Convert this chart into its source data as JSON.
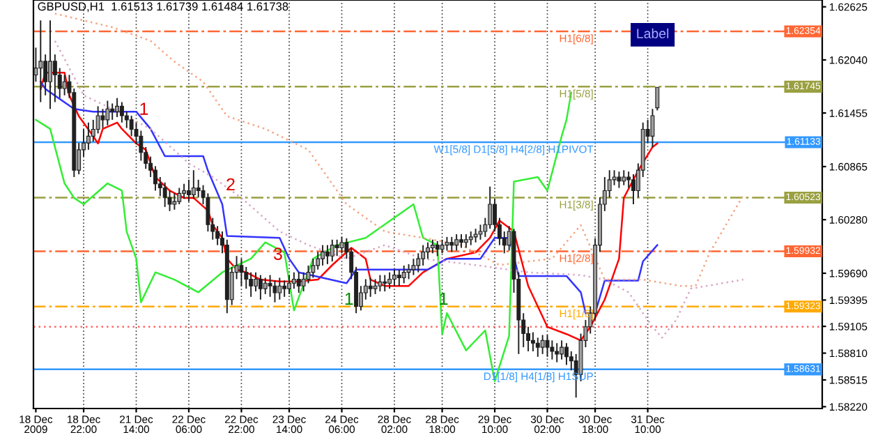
{
  "chart_data": {
    "type": "candlestick",
    "title": "GBPUSD,H1  1.61513 1.61739 1.61484 1.61738",
    "color": "#202020",
    "categories": [
      "18 Dec 2009",
      null,
      null,
      null,
      null,
      null,
      null,
      null,
      null,
      null,
      "18 Dec 22:00",
      null,
      null,
      null,
      null,
      null,
      null,
      null,
      null,
      null,
      null,
      "21 Dec 14:00",
      null,
      null,
      null,
      null,
      null,
      null,
      null,
      null,
      null,
      null,
      "22 Dec 06:00",
      null,
      null,
      null,
      null,
      null,
      null,
      null,
      null,
      null,
      null,
      "22 Dec 22:00",
      null,
      null,
      null,
      null,
      null,
      null,
      null,
      null,
      null,
      "23 Dec 14:00",
      null,
      null,
      null,
      null,
      null,
      null,
      null,
      null,
      null,
      null,
      "24 Dec 06:00",
      null,
      null,
      null,
      null,
      null,
      null,
      null,
      null,
      null,
      null,
      "28 Dec 02:00",
      null,
      null,
      null,
      null,
      null,
      null,
      null,
      null,
      null,
      "28 Dec 18:00",
      null,
      null,
      null,
      null,
      null,
      null,
      null,
      null,
      null,
      null,
      "29 Dec 10:00",
      null,
      null,
      null,
      null,
      null,
      null,
      null,
      null,
      null,
      null,
      "30 Dec 02:00",
      null,
      null,
      null,
      null,
      null,
      null,
      null,
      null,
      null,
      "30 Dec 18:00",
      null,
      null,
      null,
      null,
      null,
      null,
      null,
      null,
      null,
      null,
      "31 Dec 10:00",
      null,
      null,
      null,
      null,
      null,
      null,
      null,
      null,
      null,
      null,
      null,
      null,
      null,
      null,
      null,
      null,
      null,
      null,
      null,
      null,
      null,
      null,
      null,
      null,
      null,
      null,
      null,
      null,
      null,
      null,
      null,
      null,
      null,
      null,
      null,
      null
    ],
    "ohlc": [
      [
        1.61875,
        1.62175,
        1.618,
        1.6195
      ],
      [
        1.6195,
        1.62475,
        1.61575,
        1.62025
      ],
      [
        1.62025,
        1.621,
        1.6165,
        1.618
      ],
      [
        1.618,
        1.62475,
        1.615,
        1.62025
      ],
      [
        1.62025,
        1.621,
        1.61575,
        1.61875
      ],
      [
        1.61875,
        1.6195,
        1.6162,
        1.61725
      ],
      [
        1.61725,
        1.61875,
        1.6165,
        1.618
      ],
      [
        1.618,
        1.61875,
        1.6162,
        1.6168
      ],
      [
        1.6168,
        1.61725,
        1.6075,
        1.60825
      ],
      [
        1.60825,
        1.61125,
        1.6078,
        1.6105
      ],
      [
        1.6105,
        1.61275,
        1.60975,
        1.61125
      ],
      [
        1.61125,
        1.6135,
        1.6105,
        1.612
      ],
      [
        1.612,
        1.6138,
        1.6114,
        1.61275
      ],
      [
        1.61275,
        1.6153,
        1.6123,
        1.61425
      ],
      [
        1.61425,
        1.615,
        1.6129,
        1.6138
      ],
      [
        1.6138,
        1.6159,
        1.6132,
        1.615
      ],
      [
        1.615,
        1.6156,
        1.6138,
        1.6147
      ],
      [
        1.6147,
        1.6162,
        1.6141,
        1.6153
      ],
      [
        1.6153,
        1.61575,
        1.6135,
        1.61425
      ],
      [
        1.61425,
        1.6147,
        1.6129,
        1.6138
      ],
      [
        1.6138,
        1.61425,
        1.612,
        1.61275
      ],
      [
        1.61275,
        1.6135,
        1.6111,
        1.612
      ],
      [
        1.612,
        1.6126,
        1.6093,
        1.6102
      ],
      [
        1.6102,
        1.6108,
        1.6084,
        1.609
      ],
      [
        1.609,
        1.60975,
        1.6075,
        1.60825
      ],
      [
        1.60825,
        1.6087,
        1.606,
        1.60675
      ],
      [
        1.60675,
        1.6075,
        1.6054,
        1.6063
      ],
      [
        1.6063,
        1.6069,
        1.6042,
        1.60525
      ],
      [
        1.60525,
        1.606,
        1.60375,
        1.6045
      ],
      [
        1.6045,
        1.6057,
        1.6039,
        1.6048
      ],
      [
        1.6048,
        1.6063,
        1.6045,
        1.6057
      ],
      [
        1.6057,
        1.60675,
        1.6051,
        1.606
      ],
      [
        1.606,
        1.6072,
        1.6048,
        1.60555
      ],
      [
        1.60555,
        1.60825,
        1.6051,
        1.6063
      ],
      [
        1.6063,
        1.6072,
        1.60525,
        1.606
      ],
      [
        1.606,
        1.6066,
        1.6045,
        1.60525
      ],
      [
        1.60525,
        1.6057,
        1.6015,
        1.60225
      ],
      [
        1.60225,
        1.603,
        1.6006,
        1.6015
      ],
      [
        1.6015,
        1.6021,
        1.6,
        1.60075
      ],
      [
        1.60075,
        1.6015,
        1.5991,
        1.6
      ],
      [
        1.6,
        1.6006,
        1.5925,
        1.594
      ],
      [
        1.594,
        1.5976,
        1.5934,
        1.597
      ],
      [
        1.597,
        1.5988,
        1.59625,
        1.59775
      ],
      [
        1.59775,
        1.5985,
        1.5955,
        1.597
      ],
      [
        1.597,
        1.5976,
        1.5952,
        1.59625
      ],
      [
        1.59625,
        1.597,
        1.5943,
        1.5955
      ],
      [
        1.5955,
        1.597,
        1.5949,
        1.59625
      ],
      [
        1.59625,
        1.5967,
        1.594,
        1.5952
      ],
      [
        1.5952,
        1.5964,
        1.5946,
        1.5958
      ],
      [
        1.5958,
        1.5967,
        1.5943,
        1.5955
      ],
      [
        1.5955,
        1.5961,
        1.5937,
        1.59475
      ],
      [
        1.59475,
        1.5964,
        1.594,
        1.5955
      ],
      [
        1.5955,
        1.5961,
        1.5943,
        1.5952
      ],
      [
        1.5952,
        1.5967,
        1.5946,
        1.5958
      ],
      [
        1.5958,
        1.597,
        1.5952,
        1.59625
      ],
      [
        1.59625,
        1.597,
        1.59475,
        1.5955
      ],
      [
        1.5955,
        1.597,
        1.5949,
        1.59625
      ],
      [
        1.59625,
        1.59775,
        1.5958,
        1.597
      ],
      [
        1.597,
        1.5985,
        1.5964,
        1.59775
      ],
      [
        1.59775,
        1.59925,
        1.5973,
        1.5985
      ],
      [
        1.5985,
        1.6,
        1.59775,
        1.59925
      ],
      [
        1.59925,
        1.6,
        1.5979,
        1.5988
      ],
      [
        1.5988,
        1.6006,
        1.5982,
        1.6
      ],
      [
        1.6,
        1.6006,
        1.5988,
        1.5997
      ],
      [
        1.5997,
        1.6009,
        1.5991,
        1.6003
      ],
      [
        1.6003,
        1.60075,
        1.5985,
        1.59925
      ],
      [
        1.59925,
        1.5997,
        1.59625,
        1.597
      ],
      [
        1.597,
        1.5976,
        1.5925,
        1.59325
      ],
      [
        1.59325,
        1.5955,
        1.5928,
        1.59475
      ],
      [
        1.59475,
        1.59625,
        1.594,
        1.5955
      ],
      [
        1.5955,
        1.5964,
        1.5943,
        1.5952
      ],
      [
        1.5952,
        1.59625,
        1.5946,
        1.5955
      ],
      [
        1.5955,
        1.5967,
        1.5949,
        1.59595
      ],
      [
        1.59595,
        1.5967,
        1.5949,
        1.5958
      ],
      [
        1.5958,
        1.597,
        1.5952,
        1.59625
      ],
      [
        1.59625,
        1.5973,
        1.5955,
        1.5967
      ],
      [
        1.5967,
        1.5973,
        1.5955,
        1.5964
      ],
      [
        1.5964,
        1.59775,
        1.5958,
        1.597
      ],
      [
        1.597,
        1.5979,
        1.59625,
        1.5973
      ],
      [
        1.5973,
        1.5985,
        1.5967,
        1.59775
      ],
      [
        1.59775,
        1.5991,
        1.597,
        1.5985
      ],
      [
        1.5985,
        1.6,
        1.59775,
        1.59925
      ],
      [
        1.59925,
        1.6003,
        1.5985,
        1.5997
      ],
      [
        1.5997,
        1.6006,
        1.5991,
        1.6
      ],
      [
        1.6,
        1.60045,
        1.5988,
        1.59955
      ],
      [
        1.59955,
        1.6006,
        1.5991,
        1.6
      ],
      [
        1.6,
        1.6009,
        1.5994,
        1.6003
      ],
      [
        1.6003,
        1.6009,
        1.59925,
        1.6
      ],
      [
        1.6,
        1.6012,
        1.5994,
        1.6006
      ],
      [
        1.6006,
        1.6012,
        1.5997,
        1.6003
      ],
      [
        1.6003,
        1.6012,
        1.5997,
        1.6006
      ],
      [
        1.6006,
        1.6015,
        1.6,
        1.6009
      ],
      [
        1.6009,
        1.6018,
        1.6003,
        1.6012
      ],
      [
        1.6012,
        1.60225,
        1.6006,
        1.6015
      ],
      [
        1.6015,
        1.603,
        1.6009,
        1.60225
      ],
      [
        1.60225,
        1.60645,
        1.6018,
        1.6045
      ],
      [
        1.6045,
        1.6051,
        1.6015,
        1.60225
      ],
      [
        1.60225,
        1.603,
        1.6,
        1.60075
      ],
      [
        1.60075,
        1.6015,
        1.5991,
        1.6
      ],
      [
        1.6,
        1.6021,
        1.5994,
        1.6015
      ],
      [
        1.6015,
        1.6018,
        1.59475,
        1.59625
      ],
      [
        1.59625,
        1.597,
        1.588,
        1.59175
      ],
      [
        1.59175,
        1.5925,
        1.58875,
        1.59025
      ],
      [
        1.59025,
        1.591,
        1.5883,
        1.5895
      ],
      [
        1.5895,
        1.5904,
        1.5883,
        1.5892
      ],
      [
        1.5892,
        1.5898,
        1.5877,
        1.58875
      ],
      [
        1.58875,
        1.5901,
        1.588,
        1.5895
      ],
      [
        1.5895,
        1.5901,
        1.5877,
        1.58875
      ],
      [
        1.58875,
        1.5895,
        1.5874,
        1.5883
      ],
      [
        1.5883,
        1.5892,
        1.5871,
        1.588
      ],
      [
        1.588,
        1.5895,
        1.5874,
        1.58875
      ],
      [
        1.58875,
        1.5892,
        1.5868,
        1.5877
      ],
      [
        1.5877,
        1.5883,
        1.5862,
        1.58725
      ],
      [
        1.58725,
        1.588,
        1.5832,
        1.58575
      ],
      [
        1.58575,
        1.59025,
        1.585,
        1.5895
      ],
      [
        1.5895,
        1.59175,
        1.58875,
        1.591
      ],
      [
        1.591,
        1.59325,
        1.59025,
        1.5925
      ],
      [
        1.5925,
        1.60075,
        1.59175,
        1.6
      ],
      [
        1.6,
        1.60525,
        1.59925,
        1.6045
      ],
      [
        1.6045,
        1.6075,
        1.60375,
        1.606
      ],
      [
        1.606,
        1.60825,
        1.60525,
        1.6072
      ],
      [
        1.6072,
        1.60825,
        1.6066,
        1.6075
      ],
      [
        1.6075,
        1.6081,
        1.6063,
        1.60705
      ],
      [
        1.60705,
        1.60825,
        1.6066,
        1.6075
      ],
      [
        1.6075,
        1.6081,
        1.6063,
        1.6072
      ],
      [
        1.6072,
        1.6078,
        1.6045,
        1.606
      ],
      [
        1.606,
        1.609,
        1.60525,
        1.60825
      ],
      [
        1.60825,
        1.6135,
        1.6075,
        1.61275
      ],
      [
        1.61275,
        1.6138,
        1.61125,
        1.612
      ],
      [
        1.612,
        1.615,
        1.6108,
        1.61425
      ],
      [
        1.61513,
        1.61739,
        1.61484,
        1.61738
      ],
      null,
      null,
      null,
      null,
      null,
      null,
      null,
      null,
      null,
      null,
      null,
      null,
      null,
      null,
      null,
      null,
      null,
      null,
      null,
      null,
      null,
      null,
      null,
      null,
      null,
      null,
      null,
      null,
      null,
      null,
      null,
      null,
      null,
      null
    ],
    "series": [
      {
        "type": "line",
        "color": "#ff0000",
        "values": [
          null,
          1.6172,
          1.619,
          null,
          null,
          null,
          1.619,
          1.6165,
          null,
          1.6142,
          null,
          null,
          1.612,
          1.6112,
          1.6128,
          null,
          null,
          1.6135,
          1.6128,
          null,
          null,
          1.6112,
          null,
          1.6105,
          null,
          1.6075,
          null,
          null,
          1.606,
          null,
          null,
          1.6052,
          null,
          1.6052,
          null,
          null,
          1.6038,
          1.6022,
          null,
          1.6008,
          1.5985,
          null,
          1.5973,
          null,
          1.597,
          null,
          null,
          1.5962,
          null,
          null,
          null,
          1.596,
          null,
          null,
          null,
          1.596,
          null,
          null,
          null,
          1.5962,
          null,
          null,
          1.5978,
          null,
          null,
          null,
          1.5997,
          null,
          null,
          1.5985,
          1.5962,
          null,
          null,
          1.5955,
          null,
          null,
          null,
          null,
          1.5955,
          null,
          null,
          1.597,
          null,
          null,
          null,
          null,
          1.5985,
          null,
          null,
          null,
          null,
          null,
          1.5992,
          null,
          null,
          1.6008,
          null,
          1.6027,
          null,
          null,
          1.6015,
          null,
          null,
          1.5955,
          null,
          null,
          null,
          1.591,
          null,
          null,
          null,
          1.5902,
          null,
          null,
          1.5895,
          null,
          1.591,
          null,
          null,
          1.594,
          null,
          null,
          1.5985,
          1.6052,
          null,
          null,
          1.6082,
          null,
          null,
          1.6108,
          1.6112,
          null,
          null,
          null,
          null,
          null,
          null,
          null,
          null,
          null,
          null,
          null,
          null,
          null,
          null,
          null,
          null,
          null,
          null,
          null,
          null,
          null,
          null,
          null,
          null,
          null,
          null,
          null,
          null,
          null,
          null,
          null,
          null,
          null,
          null
        ]
      },
      {
        "type": "line",
        "color": "#3333ff",
        "values": [
          null,
          1.618,
          1.6172,
          null,
          null,
          null,
          null,
          null,
          1.615,
          null,
          null,
          null,
          1.6147,
          null,
          null,
          null,
          null,
          null,
          null,
          null,
          null,
          1.6147,
          null,
          null,
          1.6128,
          null,
          null,
          1.6098,
          null,
          null,
          null,
          null,
          null,
          null,
          null,
          1.6098,
          1.6082,
          null,
          null,
          1.6045,
          1.601,
          null,
          null,
          null,
          null,
          null,
          null,
          null,
          null,
          null,
          null,
          1.6008,
          null,
          1.5985,
          null,
          1.597,
          null,
          null,
          null,
          null,
          null,
          null,
          null,
          null,
          null,
          1.5958,
          null,
          1.5973,
          null,
          null,
          1.5973,
          null,
          null,
          null,
          null,
          null,
          null,
          null,
          null,
          null,
          null,
          null,
          1.5973,
          null,
          null,
          null,
          1.5985,
          null,
          null,
          null,
          null,
          null,
          null,
          1.5985,
          null,
          null,
          1.6008,
          null,
          null,
          1.6008,
          null,
          1.5966,
          null,
          null,
          null,
          null,
          null,
          null,
          null,
          null,
          null,
          1.5966,
          null,
          null,
          1.5948,
          1.5925,
          null,
          1.5925,
          null,
          1.5961,
          null,
          null,
          null,
          null,
          null,
          null,
          1.5961,
          1.5982,
          null,
          null,
          1.6,
          null,
          null,
          null,
          null,
          null,
          null,
          null,
          null,
          null,
          null,
          null,
          null,
          null,
          null,
          null,
          null,
          null,
          null,
          null,
          null,
          null,
          null,
          null,
          null,
          null,
          null,
          null,
          null,
          null,
          null,
          null,
          null,
          null,
          null
        ]
      },
      {
        "type": "line",
        "color": "#33ee33",
        "values": [
          1.6138,
          null,
          null,
          1.6128,
          null,
          null,
          1.6068,
          null,
          1.6052,
          null,
          1.6045,
          null,
          null,
          null,
          null,
          1.6068,
          null,
          null,
          1.606,
          1.6015,
          null,
          1.5985,
          1.5937,
          null,
          null,
          1.597,
          null,
          null,
          null,
          1.5962,
          null,
          null,
          null,
          null,
          1.5948,
          null,
          null,
          null,
          null,
          1.597,
          null,
          null,
          null,
          null,
          null,
          1.5985,
          null,
          null,
          1.6003,
          null,
          null,
          null,
          1.5992,
          null,
          1.5928,
          null,
          null,
          null,
          1.5985,
          null,
          null,
          null,
          null,
          1.6,
          null,
          null,
          null,
          null,
          null,
          1.6008,
          null,
          null,
          null,
          null,
          null,
          null,
          null,
          null,
          null,
          1.6045,
          null,
          1.6008,
          null,
          null,
          1.6,
          1.5902,
          1.5925,
          null,
          null,
          null,
          1.5884,
          null,
          null,
          null,
          1.5906,
          null,
          1.585,
          null,
          null,
          1.59,
          1.607,
          null,
          null,
          null,
          null,
          1.6075,
          null,
          1.606,
          null,
          null,
          1.612,
          1.6138,
          1.6168,
          null,
          null,
          null,
          null,
          null,
          null,
          null,
          null,
          null,
          null,
          null,
          null,
          null,
          null,
          null,
          null,
          null,
          null,
          null,
          null,
          null,
          null,
          null,
          null,
          null,
          null,
          null,
          null,
          null,
          null,
          null,
          null,
          null,
          null,
          null,
          null,
          null,
          null,
          null,
          null,
          null,
          null,
          null,
          null,
          null,
          null,
          null,
          null,
          null,
          null,
          null,
          null
        ]
      },
      {
        "type": "line",
        "color": "#f4a582",
        "line_style": "dotted",
        "values": [
          null,
          null,
          null,
          null,
          1.6255,
          null,
          null,
          null,
          null,
          null,
          null,
          null,
          null,
          null,
          null,
          null,
          1.624,
          null,
          null,
          null,
          null,
          null,
          null,
          null,
          1.6225,
          null,
          null,
          null,
          null,
          1.6202,
          null,
          null,
          null,
          null,
          null,
          1.618,
          null,
          null,
          null,
          null,
          1.6142,
          null,
          null,
          null,
          null,
          null,
          null,
          null,
          1.6128,
          null,
          null,
          null,
          null,
          null,
          null,
          null,
          null,
          1.6105,
          null,
          null,
          null,
          null,
          null,
          null,
          null,
          1.6045,
          null,
          null,
          null,
          null,
          null,
          null,
          null,
          1.6015,
          null,
          null,
          null,
          null,
          null,
          null,
          null,
          1.6008,
          null,
          null,
          null,
          null,
          null,
          null,
          null,
          1.6,
          null,
          null,
          null,
          null,
          null,
          null,
          null,
          1.5978,
          null,
          null,
          null,
          null,
          null,
          1.5982,
          null,
          null,
          null,
          null,
          1.5985,
          null,
          null,
          null,
          null,
          null,
          1.6022,
          null,
          null,
          null,
          null,
          1.5962,
          null,
          null,
          null,
          null,
          null,
          null,
          null,
          1.5962,
          null,
          null,
          null,
          null,
          null,
          null,
          null,
          1.5955,
          null,
          null,
          1.5955,
          null,
          null,
          1.5992,
          null,
          null,
          null,
          null,
          null,
          null,
          1.6055,
          null,
          null,
          null,
          null,
          null,
          null,
          null,
          null,
          null,
          null,
          null,
          null,
          null,
          null,
          null,
          null
        ]
      },
      {
        "type": "line",
        "color": "#d8a8c8",
        "line_style": "dotted",
        "values": [
          null,
          null,
          null,
          null,
          1.6225,
          null,
          null,
          null,
          null,
          null,
          1.6165,
          null,
          null,
          null,
          null,
          null,
          1.615,
          null,
          null,
          null,
          null,
          null,
          null,
          null,
          1.6128,
          null,
          null,
          null,
          null,
          null,
          null,
          null,
          1.609,
          null,
          null,
          null,
          null,
          1.6075,
          null,
          null,
          null,
          null,
          null,
          1.6052,
          null,
          null,
          null,
          null,
          null,
          null,
          null,
          1.6015,
          null,
          null,
          null,
          null,
          null,
          1.6,
          null,
          null,
          null,
          null,
          null,
          null,
          null,
          1.5985,
          null,
          null,
          null,
          null,
          null,
          null,
          null,
          1.6,
          null,
          null,
          null,
          null,
          null,
          null,
          null,
          1.5985,
          null,
          null,
          null,
          null,
          null,
          null,
          null,
          null,
          null,
          null,
          1.5978,
          null,
          null,
          null,
          null,
          null,
          null,
          null,
          null,
          null,
          null,
          1.597,
          null,
          null,
          null,
          null,
          null,
          null,
          null,
          null,
          null,
          null,
          1.5967,
          null,
          null,
          null,
          null,
          1.5962,
          null,
          null,
          null,
          null,
          1.5948,
          null,
          null,
          null,
          null,
          1.591,
          null,
          1.5898,
          null,
          null,
          1.5918,
          null,
          null,
          1.5952,
          null,
          null,
          null,
          null,
          null,
          null,
          null,
          null,
          null,
          null,
          1.5962,
          null,
          null,
          null,
          null,
          null,
          null,
          null,
          null,
          null,
          null,
          null,
          null,
          null,
          null,
          null,
          null
        ]
      }
    ],
    "ylim": [
      1.582,
      1.627
    ],
    "yticks": [
      1.62625,
      {
        "value": 1.6204,
        "label": "1.62040"
      },
      1.61455,
      1.60865,
      {
        "value": 1.6028,
        "label": "1.60280"
      },
      {
        "value": 1.5969,
        "label": "1.59690"
      },
      1.59395,
      1.59105,
      {
        "value": 1.5881,
        "label": "1.58810"
      },
      1.58515,
      {
        "value": 1.5822,
        "label": "1.58220"
      }
    ],
    "ref_lines": [
      {
        "axis": "y",
        "value": 1.62354,
        "label": "H1[6/8]",
        "color": "#ff6633",
        "line_style": "dashed"
      },
      {
        "axis": "y",
        "value": 1.61745,
        "label": "H1[5/8]",
        "color": "#9aa040",
        "line_style": "dashed"
      },
      {
        "axis": "y",
        "value": 1.61133,
        "label": "W1[5/8] D1[5/8] H4[2/8] H1PIVOT",
        "color": "#3399ff",
        "line_style": "solid"
      },
      {
        "axis": "y",
        "value": 1.60523,
        "label": "H1[3/8]",
        "color": "#9aa040",
        "line_style": "dashed"
      },
      {
        "axis": "y",
        "value": 1.59932,
        "label": "H1[2/8]",
        "color": "#ff6633",
        "line_style": "dashed"
      },
      {
        "axis": "y",
        "value": 1.59323,
        "label": "H1[1/8]",
        "color": "#ffaa00",
        "line_style": "dashed"
      },
      {
        "axis": "y",
        "value": 1.591,
        "label": null,
        "color": "#ff6666",
        "line_style": "dotted"
      },
      {
        "axis": "y",
        "value": 1.58631,
        "label": "D1[1/8] H4[1/8] H1SUP",
        "color": "#3399ff",
        "line_style": "solid"
      }
    ],
    "annotations": [
      "1",
      "2",
      "3",
      "1",
      "1",
      "Label",
      {
        "text": "1.62354",
        "y": 1.62354
      },
      {
        "text": "1.61745",
        "y": 1.61745
      },
      {
        "text": "1.61133",
        "y": 1.61133
      },
      {
        "text": "1.60523",
        "y": 1.60523
      },
      {
        "text": "1.59932",
        "y": 1.59932
      },
      {
        "text": "1.59323",
        "y": 1.59323
      },
      {
        "text": "1.58631",
        "y": 1.58631
      }
    ]
  }
}
